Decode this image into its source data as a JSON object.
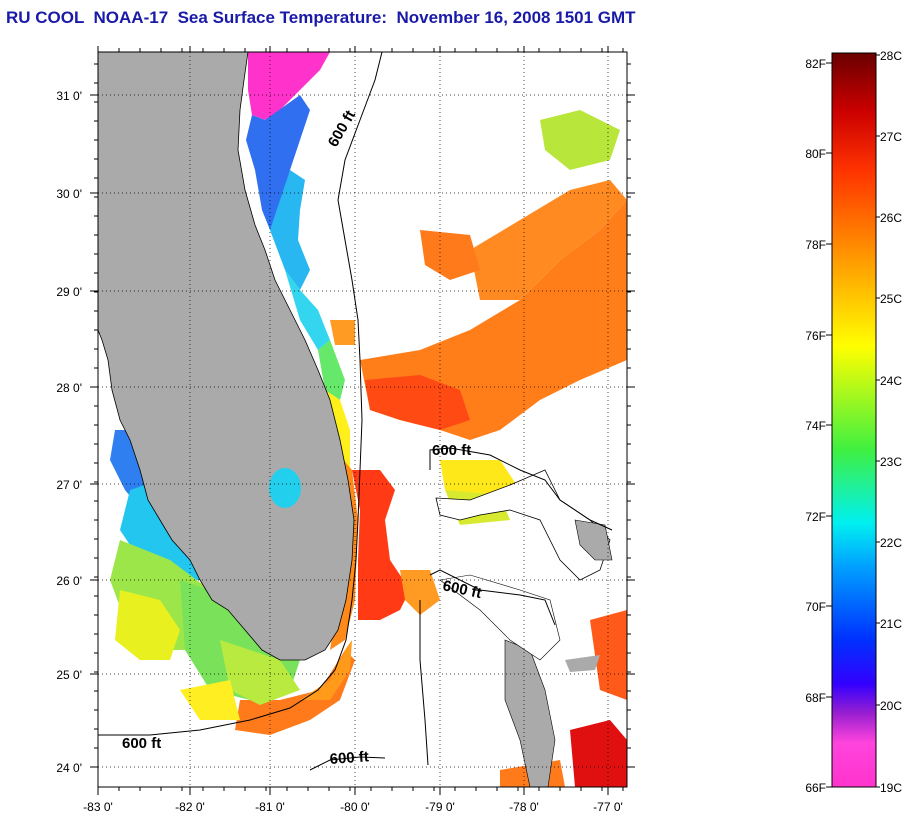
{
  "title": "RU COOL  NOAA-17  Sea Surface Temperature:  November 16, 2008 1501 GMT",
  "map": {
    "lon_range": [
      -83,
      -76.75
    ],
    "lat_range": [
      23.8,
      31.45
    ],
    "lon_tick_labels": [
      "-83 0'",
      "-82 0'",
      "-81 0'",
      "-80 0'",
      "-79 0'",
      "-78 0'",
      "-77 0'"
    ],
    "lat_tick_labels": [
      "24 0'",
      "25 0'",
      "26 0'",
      "27 0'",
      "28 0'",
      "29 0'",
      "30 0'",
      "31 0'"
    ],
    "contour_labels": [
      "600 ft",
      "600 ft",
      "600 ft",
      "600 ft",
      "600 ft"
    ],
    "land_color": "#aaaaaa",
    "grid": "dotted"
  },
  "colorbar": {
    "fahrenheit_labels": [
      "82F",
      "80F",
      "78F",
      "76F",
      "74F",
      "72F",
      "70F",
      "68F",
      "66F"
    ],
    "celsius_labels": [
      "28C",
      "27C",
      "26C",
      "25C",
      "24C",
      "23C",
      "22C",
      "21C",
      "20C",
      "19C"
    ],
    "colors": [
      "#ff33cc",
      "#9a1fd0",
      "#0000ff",
      "#00a0ff",
      "#00f0f0",
      "#40f040",
      "#ffff00",
      "#ff9900",
      "#ff3300",
      "#cc0000",
      "#6a0000"
    ]
  }
}
